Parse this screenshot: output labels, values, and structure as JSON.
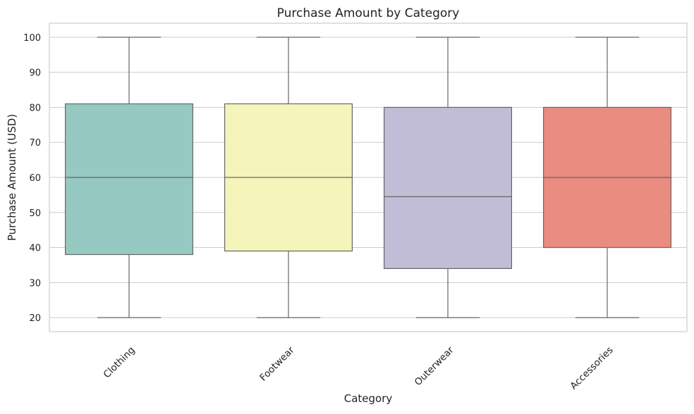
{
  "chart_data": {
    "type": "box",
    "title": "Purchase Amount by Category",
    "xlabel": "Category",
    "ylabel": "Purchase Amount (USD)",
    "ylim": [
      16,
      104
    ],
    "yticks": [
      20,
      30,
      40,
      50,
      60,
      70,
      80,
      90,
      100
    ],
    "grid": true,
    "categories": [
      "Clothing",
      "Footwear",
      "Outerwear",
      "Accessories"
    ],
    "boxes": [
      {
        "category": "Clothing",
        "min": 20,
        "q1": 38,
        "median": 60,
        "q3": 81,
        "max": 100,
        "color": "#96c9c1"
      },
      {
        "category": "Footwear",
        "min": 20,
        "q1": 39,
        "median": 60,
        "q3": 81,
        "max": 100,
        "color": "#f5f5bb"
      },
      {
        "category": "Outerwear",
        "min": 20,
        "q1": 34,
        "median": 54.5,
        "q3": 80,
        "max": 100,
        "color": "#c1bdd6"
      },
      {
        "category": "Accessories",
        "min": 20,
        "q1": 40,
        "median": 60,
        "q3": 80,
        "max": 100,
        "color": "#ea8c80"
      }
    ]
  }
}
